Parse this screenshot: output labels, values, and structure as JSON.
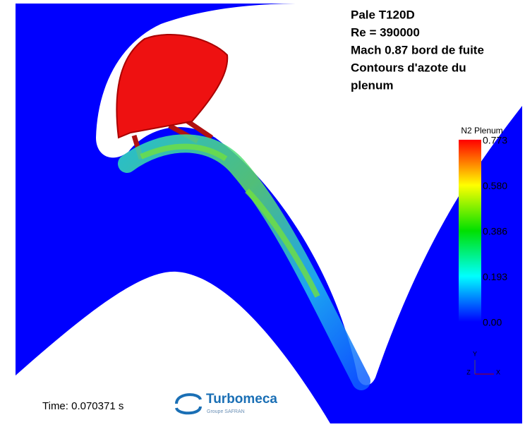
{
  "info": {
    "lines": [
      "Pale T120D",
      "Re = 390000",
      "Mach 0.87 bord de fuite",
      "Contours d'azote du",
      "plenum"
    ]
  },
  "legend": {
    "title": "N2 Plenum",
    "ticks": [
      "0.773",
      "0.580",
      "0.386",
      "0.193",
      "0.00"
    ]
  },
  "footer": {
    "time": "Time: 0.070371 s",
    "logo": "Turbomeca",
    "logo_subtitle": "Groupe SAFRAN"
  },
  "axes_triad": {
    "labels": [
      "Y",
      "Z",
      "X"
    ]
  }
}
